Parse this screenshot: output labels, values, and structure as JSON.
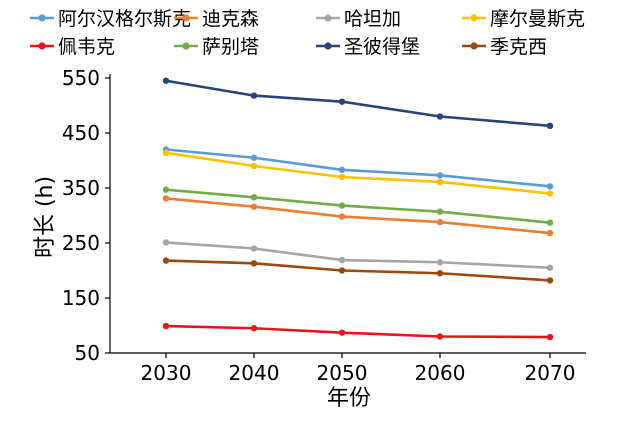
{
  "chart_data": {
    "type": "line",
    "title": "",
    "xlabel": "年份",
    "ylabel": "时长 (h)",
    "x": [
      2030,
      2040,
      2050,
      2060,
      2070
    ],
    "ylim": [
      50,
      550
    ],
    "yticks": [
      50,
      150,
      250,
      350,
      450,
      550
    ],
    "grid": false,
    "legend_position": "top",
    "series": [
      {
        "name": "阿尔汉格尔斯克",
        "color": "#5b9bd5",
        "values": [
          420,
          405,
          383,
          373,
          353
        ]
      },
      {
        "name": "迪克森",
        "color": "#ed7d31",
        "values": [
          331,
          316,
          298,
          288,
          268
        ]
      },
      {
        "name": "哈坦加",
        "color": "#a5a5a5",
        "values": [
          251,
          240,
          219,
          215,
          205
        ]
      },
      {
        "name": "摩尔曼斯克",
        "color": "#ffc000",
        "values": [
          414,
          390,
          370,
          361,
          340
        ]
      },
      {
        "name": "佩韦克",
        "color": "#e8141a",
        "values": [
          99,
          95,
          87,
          80,
          79
        ]
      },
      {
        "name": "萨别塔",
        "color": "#70ad47",
        "values": [
          347,
          333,
          318,
          307,
          287
        ]
      },
      {
        "name": "圣彼得堡",
        "color": "#264478",
        "values": [
          545,
          518,
          507,
          480,
          463
        ]
      },
      {
        "name": "季克西",
        "color": "#9e480e",
        "values": [
          218,
          213,
          200,
          195,
          182
        ]
      }
    ]
  }
}
